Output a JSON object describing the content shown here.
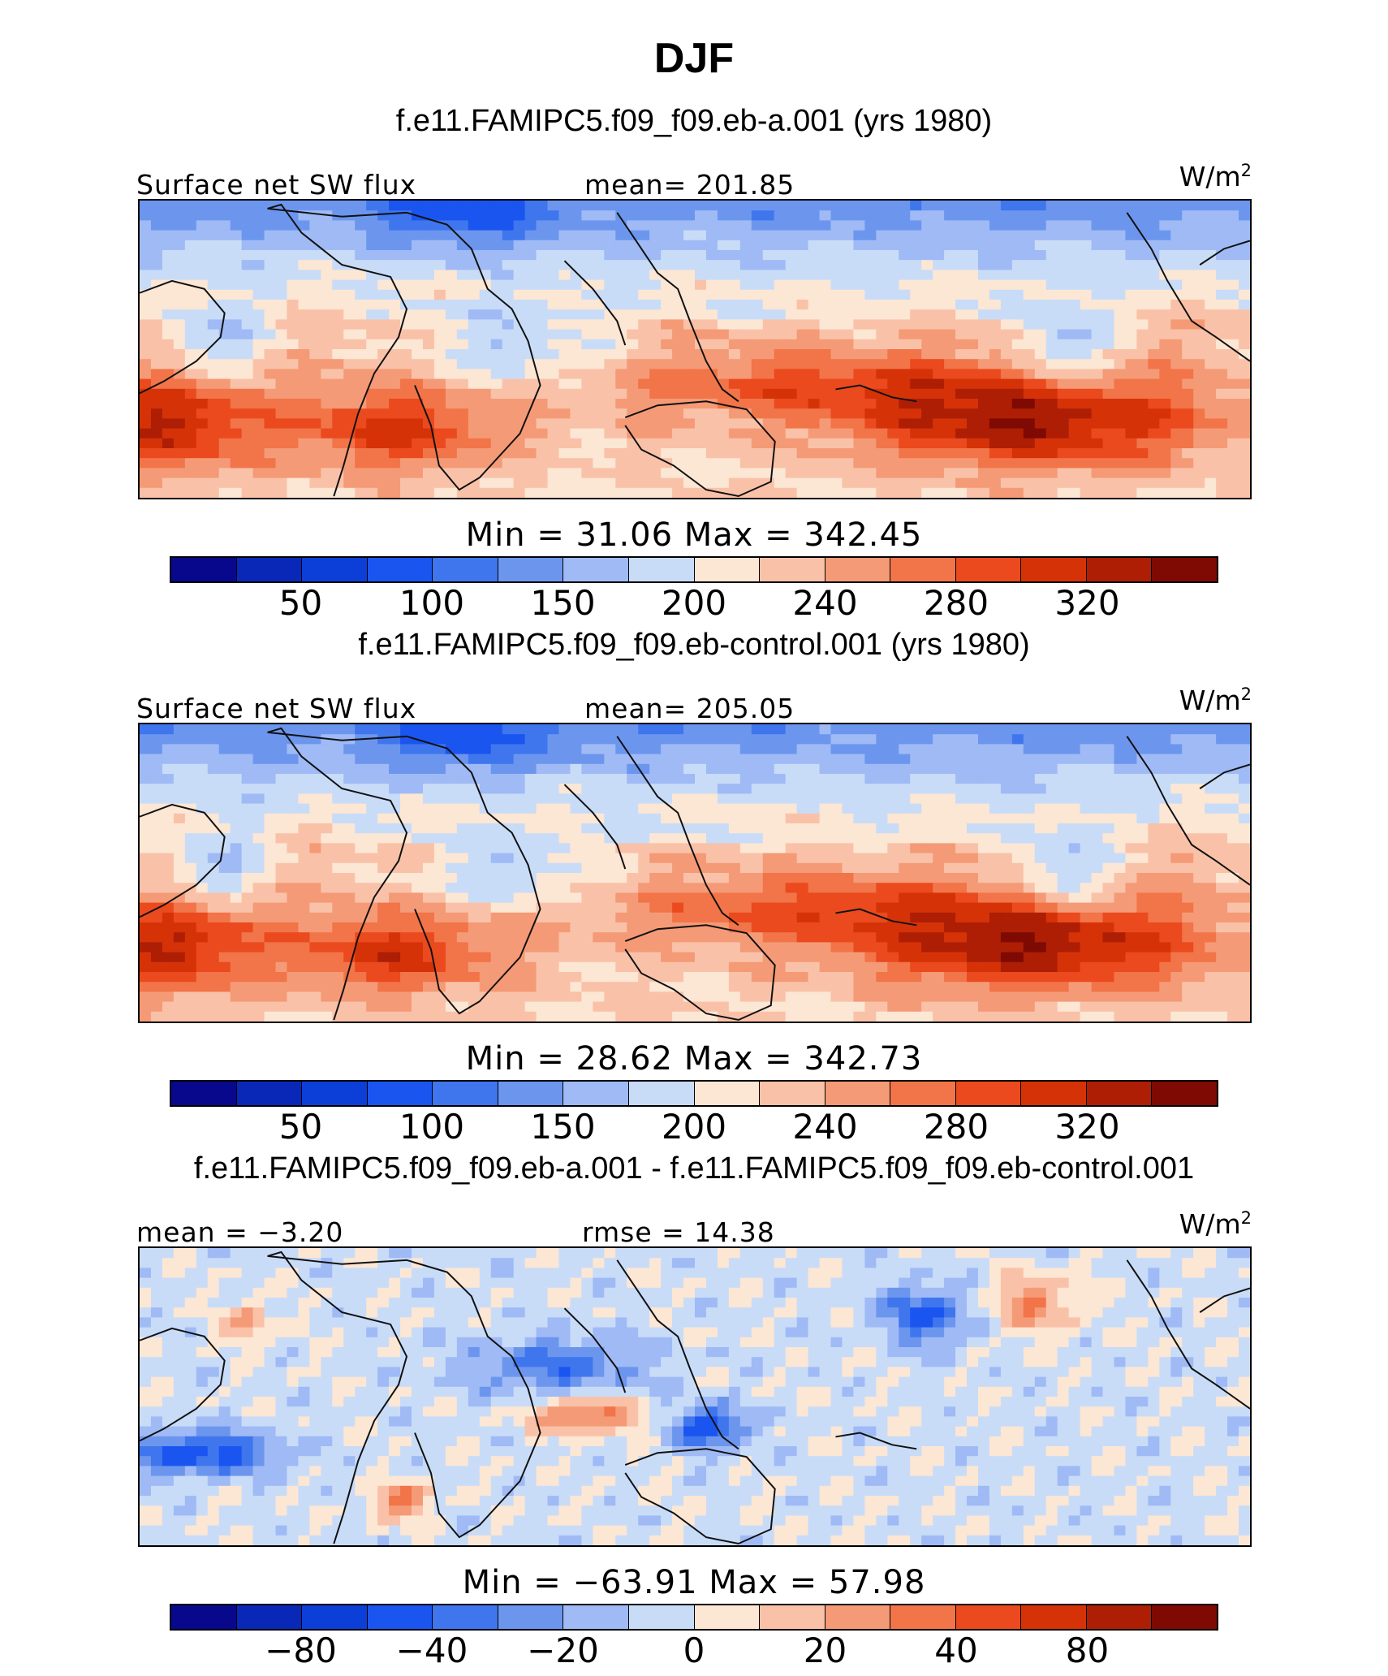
{
  "title": "DJF",
  "colors": {
    "sequential": [
      "#08088c",
      "#0a28b8",
      "#0b3fd8",
      "#1a55f0",
      "#3f76ee",
      "#6c96ee",
      "#9fbaf5",
      "#c8dcf8",
      "#fce6d4",
      "#f9c2a8",
      "#f59a76",
      "#f27449",
      "#ea4a1e",
      "#d63208",
      "#ad1e05",
      "#7e0a03"
    ],
    "diverging": [
      "#08088c",
      "#0a28b8",
      "#0b3fd8",
      "#1a55f0",
      "#3f76ee",
      "#6c96ee",
      "#9fbaf5",
      "#c8dcf8",
      "#fce6d4",
      "#f9c2a8",
      "#f59a76",
      "#f27449",
      "#ea4a1e",
      "#d63208",
      "#ad1e05",
      "#7e0a03"
    ]
  },
  "chart_data": [
    {
      "type": "heatmap",
      "case_title": "f.e11.FAMIPC5.f09_f09.eb-a.001 (yrs 1980)",
      "left_label": "Surface net SW flux",
      "center_label": "mean=  201.85",
      "mean": 201.85,
      "units": "W/m",
      "units_exp": "2",
      "min_label": "Min  =   31.06  Max  =  342.45",
      "min": 31.06,
      "max": 342.45,
      "levels": [
        25,
        50,
        75,
        100,
        125,
        150,
        175,
        200,
        220,
        240,
        260,
        280,
        300,
        320,
        340
      ],
      "tick_labels": [
        "50",
        "100",
        "150",
        "200",
        "240",
        "280",
        "320"
      ],
      "tick_levels": [
        50,
        100,
        150,
        200,
        240,
        280,
        320
      ],
      "x_range": [
        0,
        360
      ],
      "y_range": [
        -40,
        40
      ],
      "field": "sw1"
    },
    {
      "type": "heatmap",
      "case_title": "f.e11.FAMIPC5.f09_f09.eb-control.001 (yrs 1980)",
      "left_label": "Surface net SW flux",
      "center_label": "mean=  205.05",
      "mean": 205.05,
      "units": "W/m",
      "units_exp": "2",
      "min_label": "Min  =   28.62  Max  =  342.73",
      "min": 28.62,
      "max": 342.73,
      "levels": [
        25,
        50,
        75,
        100,
        125,
        150,
        175,
        200,
        220,
        240,
        260,
        280,
        300,
        320,
        340
      ],
      "tick_labels": [
        "50",
        "100",
        "150",
        "200",
        "240",
        "280",
        "320"
      ],
      "tick_levels": [
        50,
        100,
        150,
        200,
        240,
        280,
        320
      ],
      "x_range": [
        0,
        360
      ],
      "y_range": [
        -40,
        40
      ],
      "field": "sw2"
    },
    {
      "type": "heatmap",
      "case_title": "f.e11.FAMIPC5.f09_f09.eb-a.001 - f.e11.FAMIPC5.f09_f09.eb-control.001",
      "left_label": "mean =   −3.20",
      "center_label": "rmse =   14.38",
      "mean": -3.2,
      "rmse": 14.38,
      "units": "W/m",
      "units_exp": "2",
      "min_label": "Min  =  −63.91  Max  =   57.98",
      "min": -63.91,
      "max": 57.98,
      "levels": [
        -100,
        -80,
        -60,
        -40,
        -30,
        -20,
        -10,
        0,
        10,
        20,
        30,
        40,
        60,
        80,
        100
      ],
      "tick_labels": [
        "−80",
        "−40",
        "−20",
        "0",
        "20",
        "40",
        "80"
      ],
      "tick_levels": [
        -80,
        -40,
        -20,
        0,
        20,
        40,
        80
      ],
      "x_range": [
        0,
        360
      ],
      "y_range": [
        -40,
        40
      ],
      "field": "diff"
    }
  ]
}
